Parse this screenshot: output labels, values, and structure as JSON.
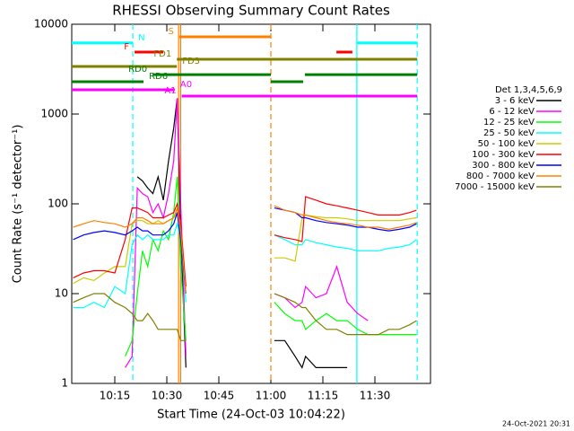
{
  "chart_data": {
    "type": "line",
    "title": "RHESSI Observing Summary Count Rates",
    "xlabel": "Start Time (24-Oct-03 10:04:22)",
    "ylabel": "Count Rate (s⁻¹ detector⁻¹)",
    "log_y": true,
    "xlim": [
      2.59,
      106.03
    ],
    "xticks": [
      {
        "value": 15,
        "label": "10:15"
      },
      {
        "value": 30,
        "label": "10:30"
      },
      {
        "value": 45,
        "label": "10:45"
      },
      {
        "value": 60,
        "label": "11:00"
      },
      {
        "value": 75,
        "label": "11:15"
      },
      {
        "value": 90,
        "label": "11:30"
      }
    ],
    "ylim": [
      1,
      10000
    ],
    "yticks": [
      1,
      10,
      100,
      1000,
      10000
    ],
    "legend_title": "Det 1,3,4,5,6,9",
    "legend_position": "right",
    "x": [
      3,
      6,
      9,
      12,
      15,
      18,
      20,
      21.5,
      23,
      24.5,
      26,
      27.5,
      29,
      30.5,
      32,
      33,
      34,
      35.5,
      36,
      61,
      64,
      67,
      69,
      70,
      73,
      76,
      79,
      82,
      85,
      88,
      91,
      94,
      97,
      100,
      102
    ],
    "series": [
      {
        "name": "3 - 6 keV",
        "color": "#000000",
        "values": [
          null,
          null,
          null,
          null,
          null,
          null,
          null,
          200,
          180,
          150,
          130,
          200,
          110,
          300,
          700,
          1500,
          50,
          1.5,
          null,
          3,
          3,
          2,
          1.5,
          2,
          1.5,
          1.5,
          1.5,
          1.5,
          null,
          null,
          null,
          null,
          null,
          null,
          null
        ]
      },
      {
        "name": "6 - 12 keV",
        "color": "#ff00ff",
        "values": [
          null,
          null,
          null,
          null,
          null,
          1.5,
          2,
          150,
          130,
          120,
          80,
          100,
          70,
          130,
          300,
          1500,
          100,
          2,
          null,
          10,
          9,
          7,
          8,
          12,
          9,
          10,
          20,
          8,
          6,
          5,
          null,
          null,
          null,
          null,
          null
        ]
      },
      {
        "name": "12 - 25 keV",
        "color": "#00ff00",
        "values": [
          null,
          null,
          null,
          null,
          null,
          2,
          3,
          10,
          30,
          20,
          40,
          30,
          50,
          40,
          80,
          200,
          20,
          3,
          null,
          8,
          6,
          5,
          5,
          4,
          5,
          6,
          5,
          5,
          4,
          3.5,
          3.5,
          3.5,
          3.5,
          3.5,
          3.5
        ]
      },
      {
        "name": "25 - 50 keV",
        "color": "#00ffff",
        "values": [
          7,
          7,
          8,
          7,
          12,
          10,
          35,
          45,
          40,
          45,
          40,
          40,
          40,
          45,
          45,
          60,
          40,
          8,
          null,
          45,
          40,
          35,
          35,
          40,
          37,
          35,
          33,
          32,
          30,
          30,
          30,
          32,
          33,
          35,
          40
        ]
      },
      {
        "name": "50 - 100 keV",
        "color": "#cccc00",
        "values": [
          13,
          15,
          14,
          17,
          20,
          20,
          60,
          65,
          65,
          60,
          60,
          65,
          60,
          65,
          70,
          80,
          40,
          10,
          null,
          25,
          25,
          23,
          70,
          75,
          72,
          70,
          70,
          68,
          65,
          65,
          65,
          65,
          65,
          68,
          70
        ]
      },
      {
        "name": "100 - 300 keV",
        "color": "#ff0000",
        "values": [
          15,
          17,
          18,
          18,
          17,
          40,
          90,
          90,
          85,
          80,
          70,
          70,
          70,
          75,
          80,
          100,
          60,
          12,
          null,
          45,
          42,
          40,
          38,
          120,
          110,
          100,
          95,
          90,
          85,
          80,
          75,
          75,
          75,
          80,
          85
        ]
      },
      {
        "name": "300 - 800 keV",
        "color": "#0000ff",
        "values": [
          40,
          45,
          48,
          50,
          48,
          45,
          50,
          55,
          50,
          50,
          45,
          45,
          45,
          50,
          60,
          80,
          40,
          10,
          null,
          90,
          85,
          80,
          70,
          70,
          65,
          62,
          60,
          58,
          55,
          55,
          52,
          50,
          52,
          55,
          60
        ]
      },
      {
        "name": "800 - 7000 keV",
        "color": "#ff8000",
        "values": [
          55,
          60,
          65,
          62,
          60,
          55,
          60,
          70,
          70,
          65,
          60,
          60,
          60,
          65,
          70,
          90,
          50,
          10,
          null,
          95,
          85,
          80,
          75,
          75,
          70,
          65,
          62,
          60,
          58,
          55,
          55,
          52,
          55,
          58,
          62
        ]
      },
      {
        "name": "7000 - 15000 keV",
        "color": "#808000",
        "values": [
          8,
          9,
          10,
          10,
          8,
          7,
          6,
          5,
          5,
          6,
          5,
          4,
          4,
          4,
          4,
          4,
          3,
          3,
          null,
          10,
          9,
          8,
          7,
          7,
          5,
          4,
          4,
          3.5,
          3.5,
          3.5,
          3.5,
          4,
          4,
          4.5,
          5
        ]
      }
    ],
    "flags": [
      {
        "name": "N",
        "color": "#00ffff",
        "level": 6200,
        "segments": [
          [
            2.59,
            20.2
          ],
          [
            84.8,
            102.2
          ]
        ]
      },
      {
        "name": "F",
        "color": "#ff0000",
        "level": 4900,
        "segments": [
          [
            20.7,
            29
          ],
          [
            78.9,
            83.5
          ]
        ]
      },
      {
        "name": "S",
        "color": "#ff8000",
        "level": 7240,
        "segments": [
          [
            33.6,
            60
          ]
        ]
      },
      {
        "name": "FD1",
        "color": "#808000",
        "level": 4070,
        "segments": [
          [
            32.9,
            102.2
          ]
        ]
      },
      {
        "name": "FD3",
        "color": "#808000",
        "level": 3390,
        "segments": [
          [
            2.59,
            32.9
          ]
        ]
      },
      {
        "name": "RD0",
        "color": "#008000",
        "level": 2750,
        "segments": [
          [
            25.9,
            60
          ],
          [
            69.8,
            102.2
          ]
        ]
      },
      {
        "name": "RD6",
        "color": "#008000",
        "level": 2290,
        "segments": [
          [
            2.59,
            23.3
          ],
          [
            60,
            69.3
          ]
        ]
      },
      {
        "name": "A1",
        "color": "#ff00ff",
        "level": 1585,
        "segments": [
          [
            34.3,
            102.2
          ]
        ]
      },
      {
        "name": "A0",
        "color": "#ff00ff",
        "level": 1860,
        "segments": [
          [
            2.59,
            32.3
          ]
        ]
      }
    ],
    "vlines": [
      {
        "x": 20.2,
        "color": "#00ffff",
        "dashed": true
      },
      {
        "x": 102.2,
        "color": "#00ffff",
        "dashed": true
      },
      {
        "x": 33.4,
        "color": "#ff8000",
        "dashed": false
      },
      {
        "x": 34.0,
        "color": "#ff8000",
        "dashed": false
      },
      {
        "x": 60,
        "color": "#ff8000",
        "dashed": true
      },
      {
        "x": 84.8,
        "color": "#00ffff",
        "dashed": false
      }
    ]
  },
  "footer": {
    "timestamp": "24-Oct-2021 20:31"
  }
}
